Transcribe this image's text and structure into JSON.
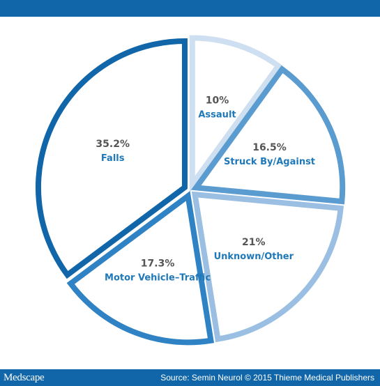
{
  "chart_data": {
    "type": "pie",
    "title": "",
    "slices": [
      {
        "label": "Assault",
        "value": 10,
        "value_label": "10%",
        "color": "#cddff0"
      },
      {
        "label": "Struck By/Against",
        "value": 16.5,
        "value_label": "16.5%",
        "color": "#5a9bd0"
      },
      {
        "label": "Unknown/Other",
        "value": 21,
        "value_label": "21%",
        "color": "#9bbfe2"
      },
      {
        "label": "Motor Vehicle–Traffic",
        "value": 17.3,
        "value_label": "17.3%",
        "color": "#2f83c4"
      },
      {
        "label": "Falls",
        "value": 35.2,
        "value_label": "35.2%",
        "color": "#1066a8"
      }
    ],
    "legend": "none"
  },
  "colors": {
    "brand_bar": "#1066a8",
    "label_value": "#555555",
    "label_name": "#1f78b8"
  },
  "footer": {
    "brand": "Medscape",
    "source": "Source: Semin Neurol © 2015 Thieme Medical Publishers"
  }
}
